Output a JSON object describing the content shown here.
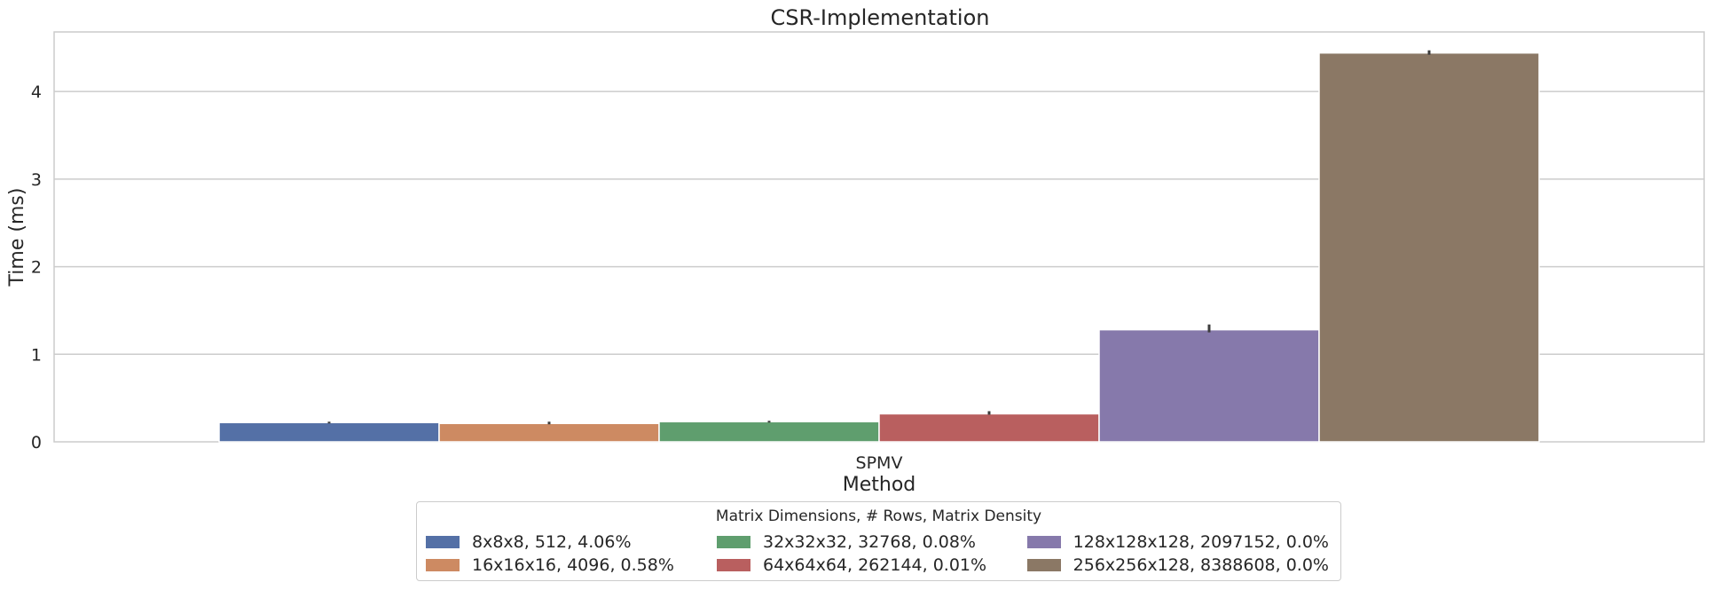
{
  "chart_data": {
    "type": "bar",
    "title": "CSR-Implementation",
    "xlabel": "Method",
    "ylabel": "Time (ms)",
    "categories": [
      "SPMV"
    ],
    "ylim": [
      0,
      4.68
    ],
    "yticks": [
      0,
      1,
      2,
      3,
      4
    ],
    "grid": true,
    "legend_title": "Matrix Dimensions, # Rows, Matrix Density",
    "legend_position": "bottom-center",
    "series": [
      {
        "name": "8x8x8, 512, 4.06%",
        "color": "#5470a6",
        "values": [
          0.22
        ],
        "err_low": [
          0.21
        ],
        "err_high": [
          0.23
        ]
      },
      {
        "name": "16x16x16, 4096, 0.58%",
        "color": "#cd8a62",
        "values": [
          0.21
        ],
        "err_low": [
          0.2
        ],
        "err_high": [
          0.23
        ]
      },
      {
        "name": "32x32x32, 32768, 0.08%",
        "color": "#5f9e6e",
        "values": [
          0.23
        ],
        "err_low": [
          0.22
        ],
        "err_high": [
          0.24
        ]
      },
      {
        "name": "64x64x64, 262144, 0.01%",
        "color": "#b95f5f",
        "values": [
          0.32
        ],
        "err_low": [
          0.31
        ],
        "err_high": [
          0.35
        ]
      },
      {
        "name": "128x128x128, 2097152, 0.0%",
        "color": "#8679ab",
        "values": [
          1.28
        ],
        "err_low": [
          1.25
        ],
        "err_high": [
          1.34
        ]
      },
      {
        "name": "256x256x128, 8388608, 0.0%",
        "color": "#8b7865",
        "values": [
          4.44
        ],
        "err_low": [
          4.42
        ],
        "err_high": [
          4.47
        ]
      }
    ]
  }
}
